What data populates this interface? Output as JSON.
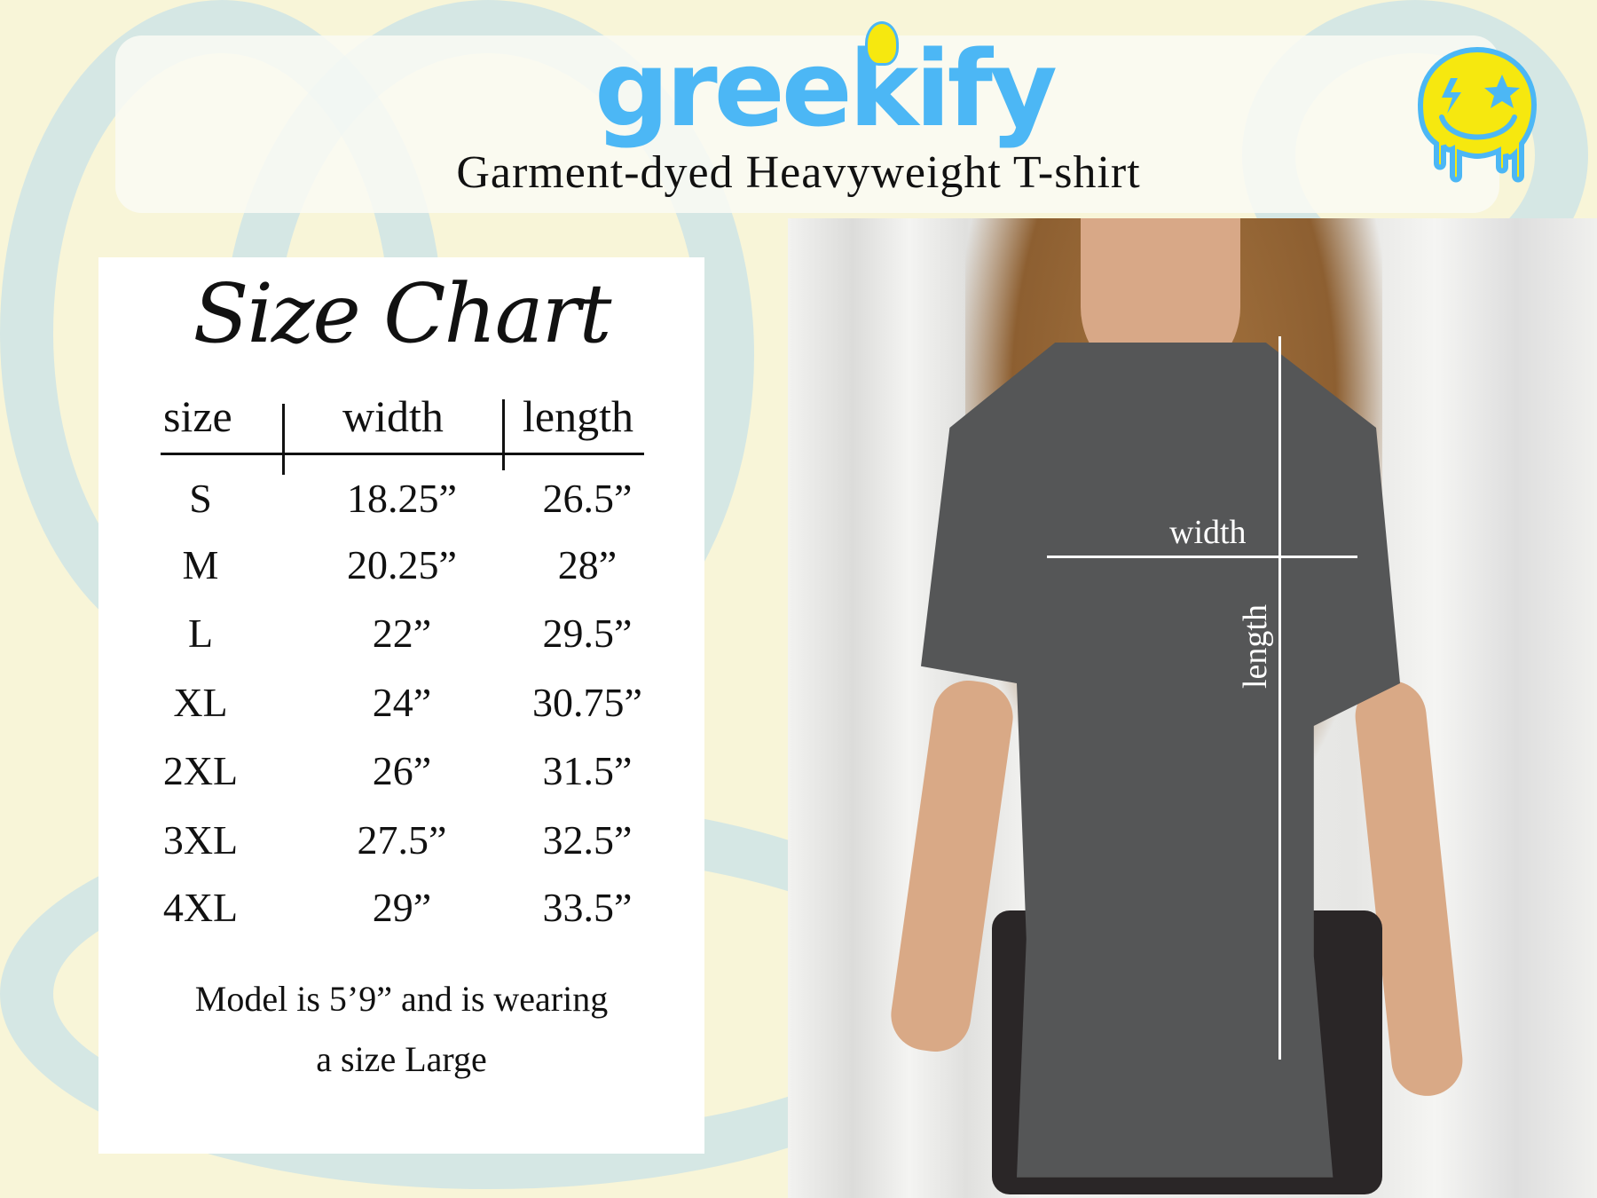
{
  "brand": {
    "logo_text": "greekify",
    "accent": "#4cb7f5",
    "smiley_color": "#f6e80f"
  },
  "subtitle": "Garment-dyed Heavyweight T-shirt",
  "size_chart": {
    "title": "Size Chart",
    "headers": [
      "size",
      "width",
      "length"
    ],
    "rows": [
      [
        "S",
        "18.25”",
        "26.5”"
      ],
      [
        "M",
        "20.25”",
        "28”"
      ],
      [
        "L",
        "22”",
        "29.5”"
      ],
      [
        "XL",
        "24”",
        "30.75”"
      ],
      [
        "2XL",
        "26”",
        "31.5”"
      ],
      [
        "3XL",
        "27.5”",
        "32.5”"
      ],
      [
        "4XL",
        "29”",
        "33.5”"
      ]
    ],
    "note_line1": "Model is 5’9” and is wearing",
    "note_line2": "a size Large"
  },
  "photo": {
    "width_label": "width",
    "length_label": "length"
  }
}
